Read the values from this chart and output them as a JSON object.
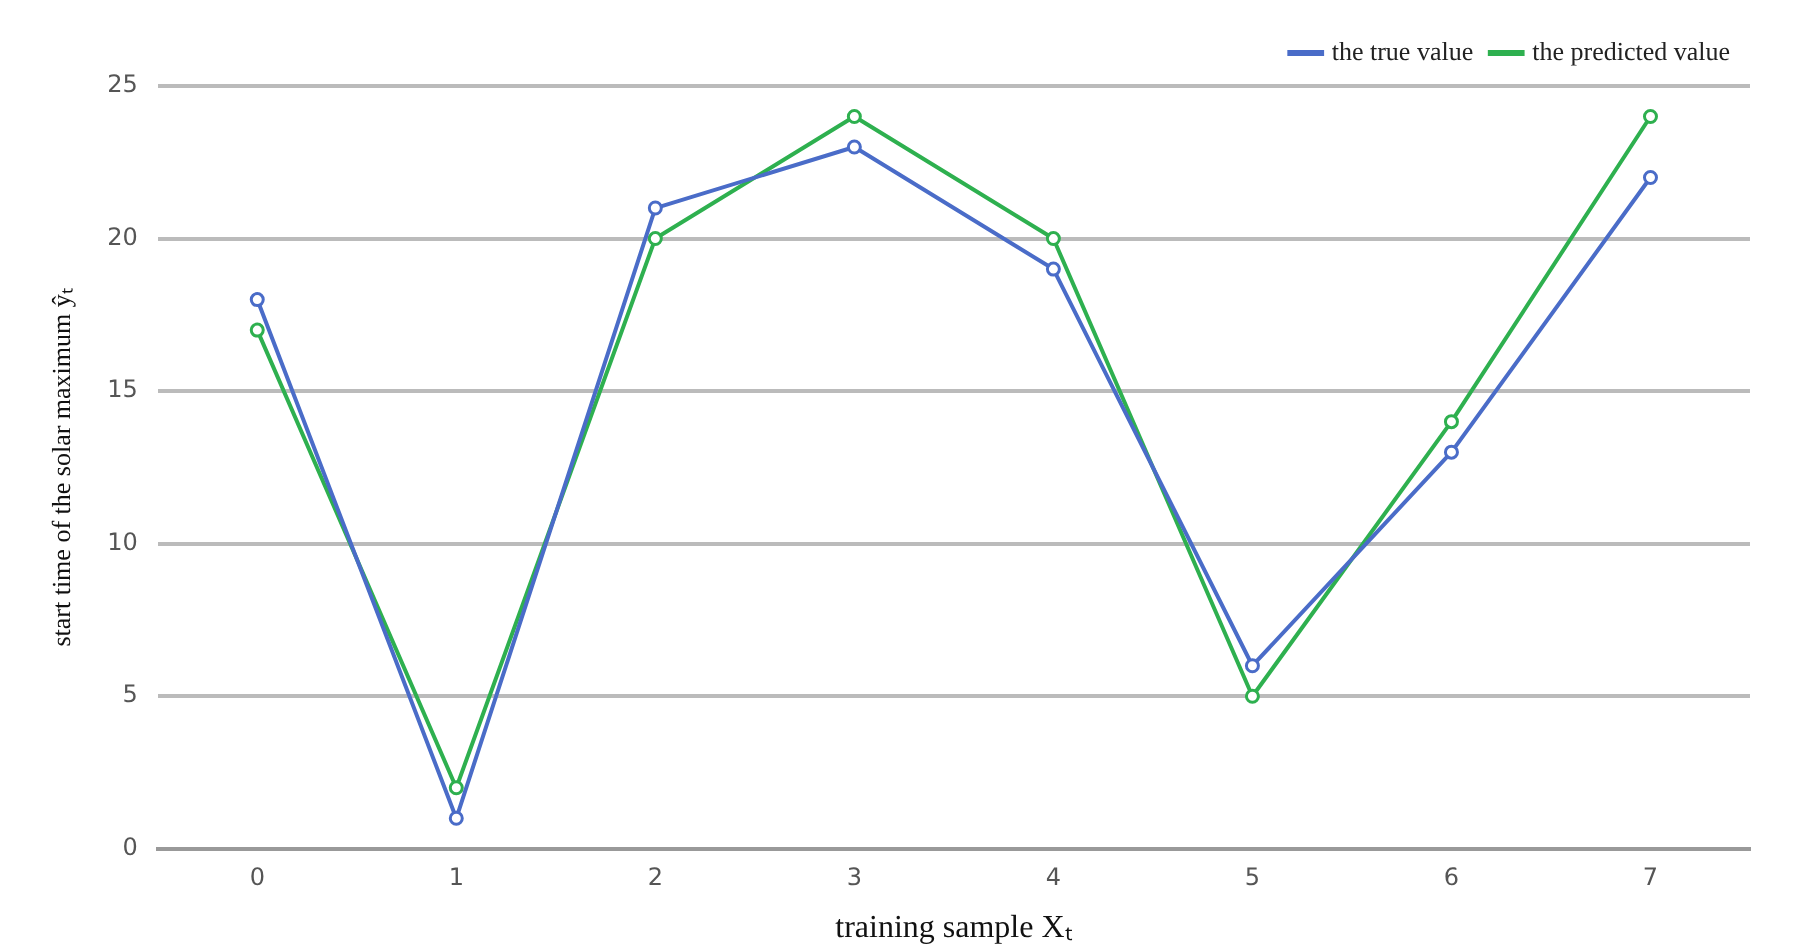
{
  "chart_data": {
    "type": "line",
    "xlabel": "training sample Xₜ",
    "ylabel": "start time of the solar maximum ŷₜ",
    "categories": [
      "0",
      "1",
      "2",
      "3",
      "4",
      "5",
      "6",
      "7"
    ],
    "series": [
      {
        "name": "the true value",
        "color": "#4a6cc8",
        "values": [
          18,
          1,
          21,
          23,
          19,
          6,
          13,
          22
        ]
      },
      {
        "name": "the predicted value",
        "color": "#2eb04f",
        "values": [
          17,
          2,
          20,
          24,
          20,
          5,
          14,
          24
        ]
      }
    ],
    "ylim": [
      0,
      25
    ],
    "yticks": [
      0,
      5,
      10,
      15,
      20,
      25
    ],
    "grid": "y",
    "legend": "top right",
    "marker": "circle",
    "line_style": "solid"
  }
}
